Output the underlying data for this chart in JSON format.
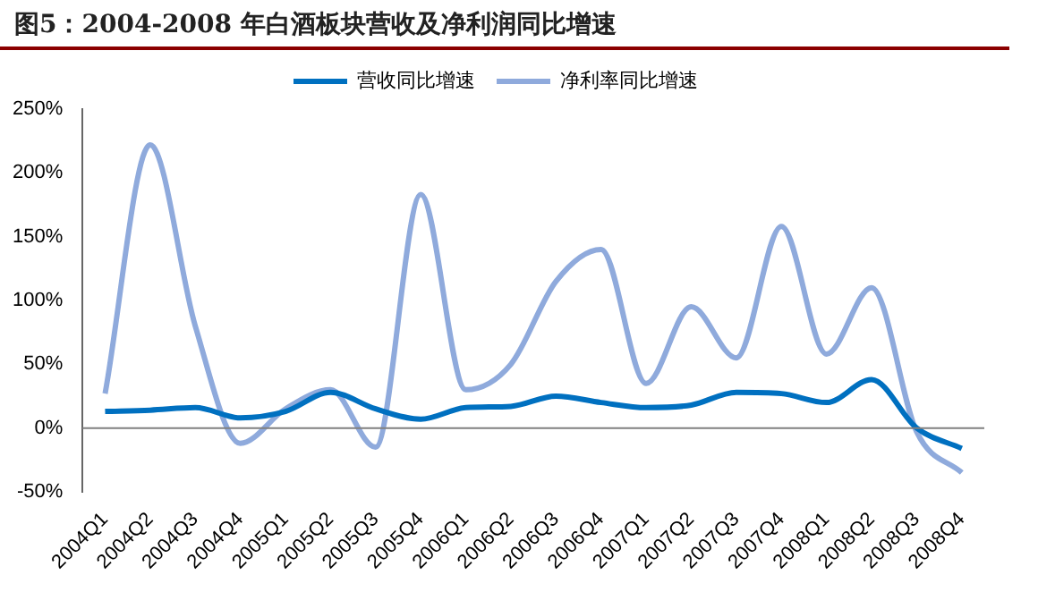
{
  "chart_data": {
    "type": "line",
    "title": "图5：2004-2008 年白酒板块营收及净利润同比增速",
    "categories": [
      "2004Q1",
      "2004Q2",
      "2004Q3",
      "2004Q4",
      "2005Q1",
      "2005Q2",
      "2005Q3",
      "2005Q4",
      "2006Q1",
      "2006Q2",
      "2006Q3",
      "2006Q4",
      "2007Q1",
      "2007Q2",
      "2007Q3",
      "2007Q4",
      "2008Q1",
      "2008Q2",
      "2008Q3",
      "2008Q4"
    ],
    "series": [
      {
        "name": "营收同比增速",
        "color": "#0070c0",
        "values": [
          13,
          14,
          16,
          8,
          13,
          28,
          15,
          7,
          16,
          17,
          25,
          20,
          16,
          18,
          28,
          27,
          20,
          38,
          0,
          -16
        ]
      },
      {
        "name": "净利率同比增速",
        "color": "#8faadc",
        "values": [
          27,
          222,
          80,
          -12,
          15,
          30,
          -15,
          183,
          30,
          50,
          115,
          140,
          35,
          95,
          55,
          158,
          58,
          110,
          -3,
          -35
        ]
      }
    ],
    "ylim": [
      -50,
      250
    ],
    "yticks": [
      {
        "value": -50,
        "label": "-50%"
      },
      {
        "value": 0,
        "label": "0%"
      },
      {
        "value": 50,
        "label": "50%"
      },
      {
        "value": 100,
        "label": "100%"
      },
      {
        "value": 150,
        "label": "150%"
      },
      {
        "value": 200,
        "label": "200%"
      },
      {
        "value": 250,
        "label": "250%"
      }
    ],
    "ref_lines": [
      {
        "axis": "y",
        "value": 0,
        "color": "#808080"
      }
    ],
    "grid": false,
    "legend": "top",
    "marker": "none",
    "line_style": "solid"
  }
}
